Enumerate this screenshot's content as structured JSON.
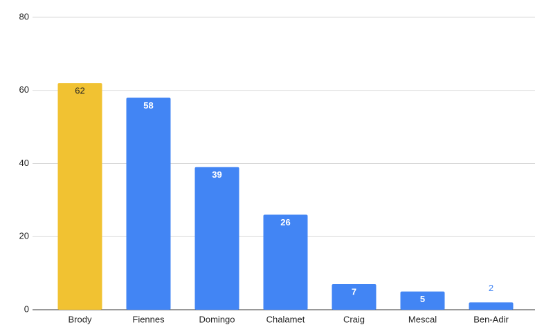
{
  "chart_data": {
    "type": "bar",
    "categories": [
      "Brody",
      "Fiennes",
      "Domingo",
      "Chalamet",
      "Craig",
      "Mescal",
      "Ben-Adir"
    ],
    "values": [
      62,
      58,
      39,
      26,
      7,
      5,
      2
    ],
    "colors": [
      "#f1c232",
      "#4285f4",
      "#4285f4",
      "#4285f4",
      "#4285f4",
      "#4285f4",
      "#4285f4"
    ],
    "ylim": [
      0,
      80
    ],
    "yticks": [
      0,
      20,
      40,
      60,
      80
    ],
    "grid": true
  }
}
